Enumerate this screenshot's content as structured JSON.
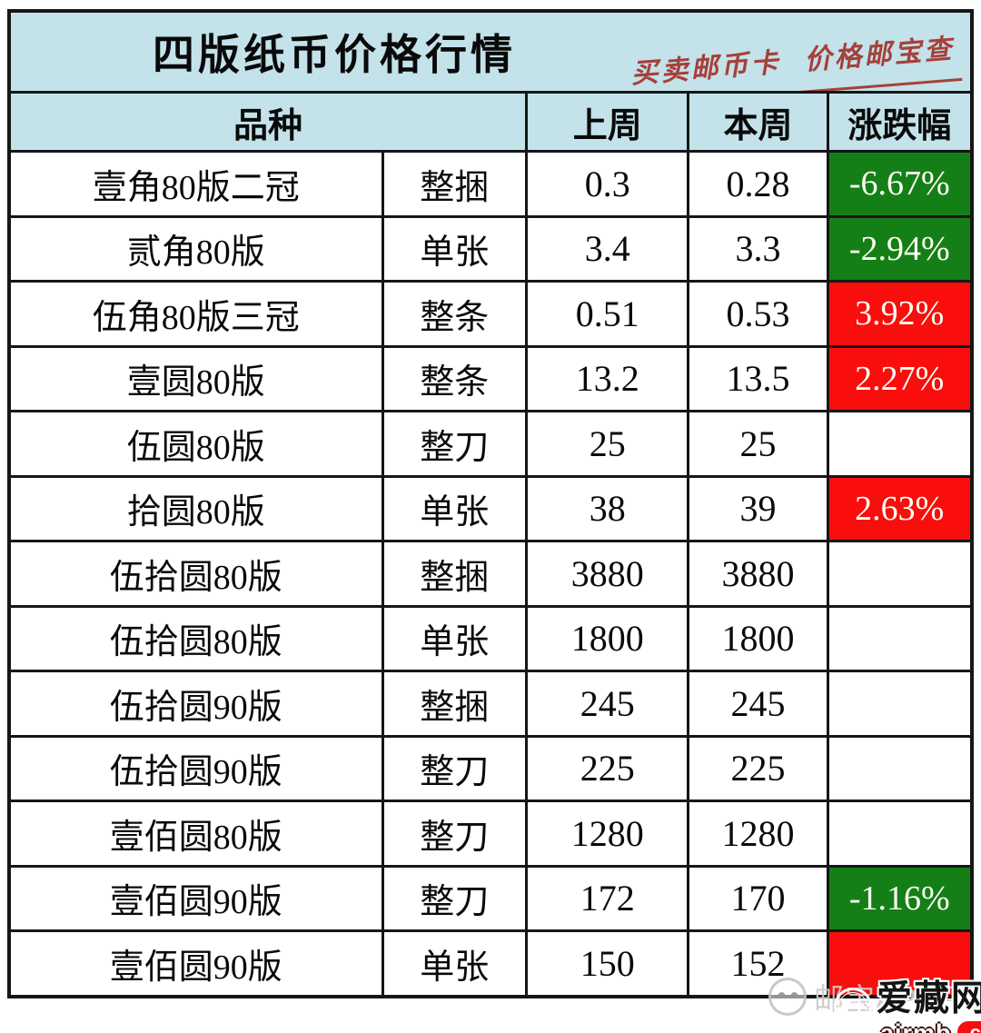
{
  "header": {
    "title": "四版纸币价格行情",
    "slogan": "买卖邮币卡 价格邮宝查"
  },
  "table_headers": {
    "variety": "品种",
    "last_week": "上周",
    "this_week": "本周",
    "change": "涨跌幅"
  },
  "chart_data": {
    "type": "table",
    "title": "四版纸币价格行情",
    "columns": [
      "品种",
      "上周",
      "本周",
      "涨跌幅"
    ],
    "rows": [
      {
        "variety": "壹角80版二冠",
        "unit": "整捆",
        "last_week": "0.3",
        "this_week": "0.28",
        "change": "-6.67%",
        "direction": "down"
      },
      {
        "variety": "贰角80版",
        "unit": "单张",
        "last_week": "3.4",
        "this_week": "3.3",
        "change": "-2.94%",
        "direction": "down"
      },
      {
        "variety": "伍角80版三冠",
        "unit": "整条",
        "last_week": "0.51",
        "this_week": "0.53",
        "change": "3.92%",
        "direction": "up"
      },
      {
        "variety": "壹圆80版",
        "unit": "整条",
        "last_week": "13.2",
        "this_week": "13.5",
        "change": "2.27%",
        "direction": "up"
      },
      {
        "variety": "伍圆80版",
        "unit": "整刀",
        "last_week": "25",
        "this_week": "25",
        "change": "",
        "direction": "flat"
      },
      {
        "variety": "拾圆80版",
        "unit": "单张",
        "last_week": "38",
        "this_week": "39",
        "change": "2.63%",
        "direction": "up"
      },
      {
        "variety": "伍拾圆80版",
        "unit": "整捆",
        "last_week": "3880",
        "this_week": "3880",
        "change": "",
        "direction": "flat"
      },
      {
        "variety": "伍拾圆80版",
        "unit": "单张",
        "last_week": "1800",
        "this_week": "1800",
        "change": "",
        "direction": "flat"
      },
      {
        "variety": "伍拾圆90版",
        "unit": "整捆",
        "last_week": "245",
        "this_week": "245",
        "change": "",
        "direction": "flat"
      },
      {
        "variety": "伍拾圆90版",
        "unit": "整刀",
        "last_week": "225",
        "this_week": "225",
        "change": "",
        "direction": "flat"
      },
      {
        "variety": "壹佰圆80版",
        "unit": "整刀",
        "last_week": "1280",
        "this_week": "1280",
        "change": "",
        "direction": "flat"
      },
      {
        "variety": "壹佰圆90版",
        "unit": "整刀",
        "last_week": "172",
        "this_week": "170",
        "change": "-1.16%",
        "direction": "down"
      },
      {
        "variety": "壹佰圆90版",
        "unit": "单张",
        "last_week": "150",
        "this_week": "152",
        "change": "",
        "direction": "up"
      }
    ]
  },
  "colors": {
    "up_bg": "#fa0d0d",
    "down_bg": "#157f17",
    "header_bg": "#c3e2ea",
    "slogan": "#a6403a"
  },
  "watermark": {
    "text": "邮宝APP平台"
  },
  "logo": {
    "site_name": "爱藏网",
    "domain": "airmb",
    "tld": ".com"
  }
}
